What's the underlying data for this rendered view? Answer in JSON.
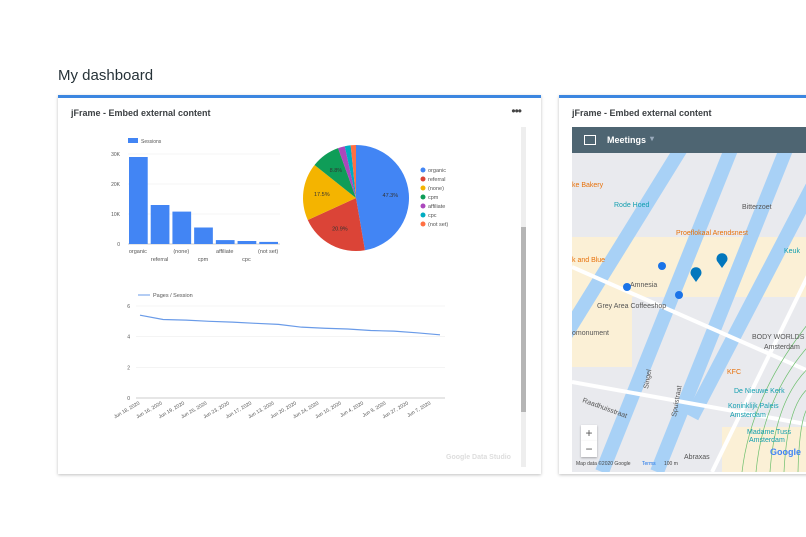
{
  "page": {
    "title": "My dashboard"
  },
  "cards": [
    {
      "title": "jFrame - Embed external content",
      "menu": "•••"
    },
    {
      "title": "jFrame - Embed external content"
    }
  ],
  "watermark": "Google Data Studio",
  "chart_data": [
    {
      "type": "bar",
      "legend": "Sessions",
      "categories": [
        "organic",
        "referral",
        "(none)",
        "cpm",
        "affiliate",
        "cpc",
        "(not set)"
      ],
      "values": [
        29000,
        13000,
        10800,
        5500,
        1300,
        1000,
        700
      ],
      "ylim": [
        0,
        30000
      ],
      "yticks": [
        "0",
        "10K",
        "20K",
        "30K"
      ],
      "color": "#4285f4",
      "grid": true,
      "legend_position": "top-left"
    },
    {
      "type": "pie",
      "categories": [
        "organic",
        "referral",
        "(none)",
        "cpm",
        "affiliate",
        "cpc",
        "(not set)"
      ],
      "values": [
        47.3,
        20.9,
        17.5,
        8.8,
        2.1,
        1.8,
        1.6
      ],
      "labels": [
        "47.3%",
        "20.9%",
        "17.5%",
        "8.8%",
        "",
        "",
        ""
      ],
      "colors": [
        "#4285f4",
        "#db4437",
        "#f4b400",
        "#0f9d58",
        "#ab47bc",
        "#00acc1",
        "#ff7043"
      ],
      "legend_position": "right"
    },
    {
      "type": "line",
      "legend": "Pages / Session",
      "x": [
        "Jun 18, 2020",
        "Jun 16, 2020",
        "Jun 19, 2020",
        "Jun 25, 2020",
        "Jun 23, 2020",
        "Jun 17, 2020",
        "Jun 13, 2020",
        "Jun 20, 2020",
        "Jun 24, 2020",
        "Jun 10, 2020",
        "Jun 4, 2020",
        "Jun 9, 2020",
        "Jun 27, 2020",
        "Jun 7, 2020"
      ],
      "values": [
        5.4,
        5.12,
        5.08,
        5.0,
        4.95,
        4.87,
        4.8,
        4.62,
        4.55,
        4.5,
        4.4,
        4.36,
        4.25,
        4.12
      ],
      "ylim": [
        0,
        6
      ],
      "yticks": [
        "0",
        "2",
        "4",
        "6"
      ],
      "color": "#6a9be8",
      "grid": true,
      "legend_position": "top-left"
    }
  ],
  "map": {
    "header": "Meetings",
    "labels": [
      "ke Bakery",
      "Rode Hoed",
      "Bitterzoet",
      "Proeflokaal Arendsnest",
      "k and Blue",
      "Amnesia",
      "Grey Area Coffeeshop",
      "omonument",
      "BODY WORLDS",
      "Amsterdam",
      "KFC",
      "De Nieuwe Kerk",
      "Koninklijk Paleis",
      "Amsterdam",
      "Madame Tuss",
      "Amsterdam",
      "Abraxas",
      "Raadhuisstraat",
      "Singel",
      "Spuistraat",
      "Keuk"
    ],
    "zoom_in": "+",
    "zoom_out": "−",
    "attribution": "Map data ©2020 Google",
    "terms": "Terms",
    "scale": "100 m",
    "logo": "Google"
  }
}
